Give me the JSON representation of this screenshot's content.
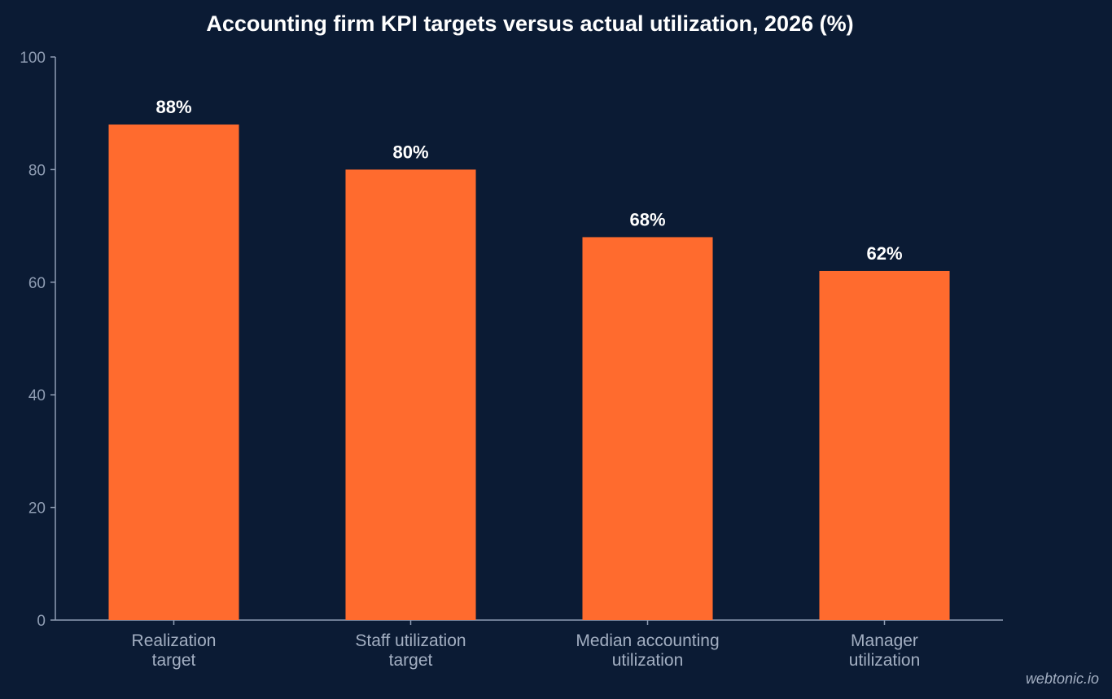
{
  "chart_data": {
    "type": "bar",
    "title": "Accounting firm KPI targets versus actual utilization, 2026 (%)",
    "xlabel": "",
    "ylabel": "",
    "categories": [
      [
        "Realization",
        "target"
      ],
      [
        "Staff utilization",
        "target"
      ],
      [
        "Median accounting",
        "utilization"
      ],
      [
        "Manager",
        "utilization"
      ]
    ],
    "values": [
      88,
      80,
      68,
      62
    ],
    "value_labels": [
      "88%",
      "80%",
      "68%",
      "62%"
    ],
    "ylim": [
      0,
      100
    ],
    "yticks": [
      0,
      20,
      40,
      60,
      80,
      100
    ],
    "grid": false,
    "legend": "none",
    "colors": {
      "background": "#0b1b34",
      "bar": "#ff6b2e",
      "axis": "#8f9db3"
    }
  },
  "watermark": "webtonic.io"
}
